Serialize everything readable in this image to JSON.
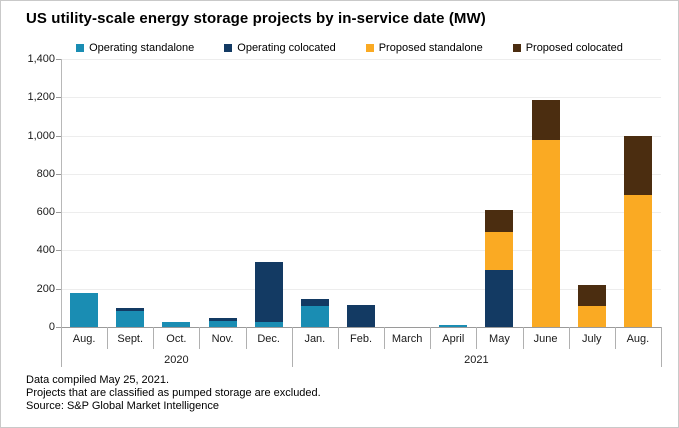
{
  "title": "US utility-scale energy storage projects by in-service date (MW)",
  "legend": [
    {
      "label": "Operating standalone",
      "color": "#1a8db3"
    },
    {
      "label": "Operating colocated",
      "color": "#133a63"
    },
    {
      "label": "Proposed standalone",
      "color": "#faaa23"
    },
    {
      "label": "Proposed colocated",
      "color": "#4b2d10"
    }
  ],
  "chart_data": {
    "type": "bar",
    "stacked": true,
    "title": "US utility-scale energy storage projects by in-service date (MW)",
    "categories": [
      "Aug.",
      "Sept.",
      "Oct.",
      "Nov.",
      "Dec.",
      "Jan.",
      "Feb.",
      "March",
      "April",
      "May",
      "June",
      "July",
      "Aug."
    ],
    "year_groups": [
      {
        "label": "2020",
        "start": 0,
        "end": 4
      },
      {
        "label": "2021",
        "start": 5,
        "end": 12
      }
    ],
    "series": [
      {
        "name": "Operating standalone",
        "color": "#1a8db3",
        "values": [
          180,
          85,
          25,
          30,
          25,
          110,
          0,
          0,
          10,
          0,
          0,
          0,
          0
        ]
      },
      {
        "name": "Operating colocated",
        "color": "#133a63",
        "values": [
          0,
          15,
          0,
          15,
          315,
          35,
          115,
          0,
          0,
          300,
          0,
          0,
          0
        ]
      },
      {
        "name": "Proposed standalone",
        "color": "#faaa23",
        "values": [
          0,
          0,
          0,
          0,
          0,
          0,
          0,
          0,
          0,
          195,
          975,
          110,
          690
        ]
      },
      {
        "name": "Proposed colocated",
        "color": "#4b2d10",
        "values": [
          0,
          0,
          0,
          0,
          0,
          0,
          0,
          0,
          0,
          115,
          210,
          110,
          310
        ]
      }
    ],
    "ylim": [
      0,
      1400
    ],
    "ytick_step": 200,
    "ytick_labels": [
      "0",
      "200",
      "400",
      "600",
      "800",
      "1,000",
      "1,200",
      "1,400"
    ],
    "grid": true,
    "legend_position": "top"
  },
  "footer": {
    "line1": "Data compiled May 25, 2021.",
    "line2": "Projects that are classified as pumped storage are excluded.",
    "line3": "Source: S&P Global Market Intelligence"
  }
}
